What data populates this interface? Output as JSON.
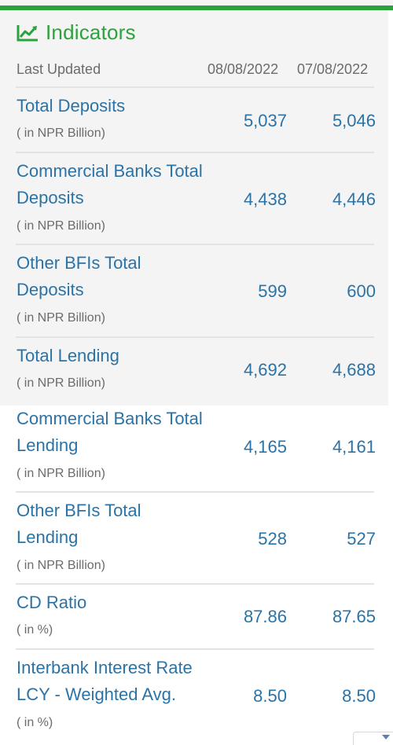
{
  "title": "Indicators",
  "header": {
    "label": "Last Updated",
    "date1": "08/08/2022",
    "date2": "07/08/2022"
  },
  "rows": [
    {
      "label": "Total Deposits",
      "unit": "( in NPR Billion)",
      "v1": "5,037",
      "v2": "5,046"
    },
    {
      "label": "Commercial Banks Total\nDeposits",
      "unit": "( in NPR Billion)",
      "v1": "4,438",
      "v2": "4,446"
    },
    {
      "label": "Other BFIs Total\nDeposits",
      "unit": "( in NPR Billion)",
      "v1": "599",
      "v2": "600"
    },
    {
      "label": "Total Lending",
      "unit": "( in NPR Billion)",
      "v1": "4,692",
      "v2": "4,688"
    },
    {
      "label": "Commercial Banks Total\nLending",
      "unit": "( in NPR Billion)",
      "v1": "4,165",
      "v2": "4,161"
    },
    {
      "label": "Other BFIs Total\nLending",
      "unit": "( in NPR Billion)",
      "v1": "528",
      "v2": "527"
    },
    {
      "label": "CD Ratio",
      "unit": "( in %)",
      "v1": "87.86",
      "v2": "87.65"
    },
    {
      "label": "Interbank Interest Rate\nLCY - Weighted Avg.",
      "unit": "( in %)",
      "v1": "8.50",
      "v2": "8.50"
    }
  ],
  "colors": {
    "accent_green": "#2aa33a",
    "link_blue": "#2b73a6",
    "muted_gray": "#6b6b6b"
  },
  "icons": {
    "title_icon": "line-chart-icon"
  }
}
